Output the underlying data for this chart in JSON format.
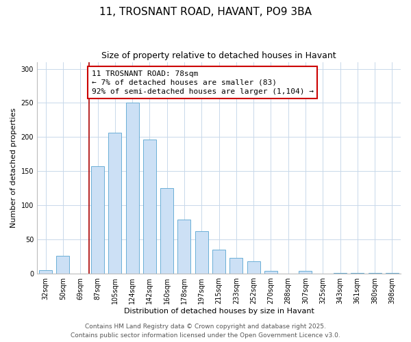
{
  "title": "11, TROSNANT ROAD, HAVANT, PO9 3BA",
  "subtitle": "Size of property relative to detached houses in Havant",
  "xlabel": "Distribution of detached houses by size in Havant",
  "ylabel": "Number of detached properties",
  "bar_labels": [
    "32sqm",
    "50sqm",
    "69sqm",
    "87sqm",
    "105sqm",
    "124sqm",
    "142sqm",
    "160sqm",
    "178sqm",
    "197sqm",
    "215sqm",
    "233sqm",
    "252sqm",
    "270sqm",
    "288sqm",
    "307sqm",
    "325sqm",
    "343sqm",
    "361sqm",
    "380sqm",
    "398sqm"
  ],
  "bar_values": [
    5,
    26,
    0,
    157,
    206,
    250,
    196,
    125,
    79,
    62,
    35,
    23,
    18,
    4,
    0,
    4,
    0,
    1,
    1,
    1,
    1
  ],
  "bar_color": "#cce0f5",
  "bar_edge_color": "#6aaed6",
  "bar_width": 0.75,
  "vline_x": 2.5,
  "vline_color": "#aa0000",
  "annotation_text": "11 TROSNANT ROAD: 78sqm\n← 7% of detached houses are smaller (83)\n92% of semi-detached houses are larger (1,104) →",
  "annotation_box_color": "#ffffff",
  "annotation_box_edge_color": "#cc0000",
  "ylim": [
    0,
    310
  ],
  "yticks": [
    0,
    50,
    100,
    150,
    200,
    250,
    300
  ],
  "footer_line1": "Contains HM Land Registry data © Crown copyright and database right 2025.",
  "footer_line2": "Contains public sector information licensed under the Open Government Licence v3.0.",
  "background_color": "#ffffff",
  "grid_color": "#c8d8ea",
  "title_fontsize": 11,
  "subtitle_fontsize": 9,
  "axis_label_fontsize": 8,
  "tick_fontsize": 7,
  "annotation_fontsize": 8,
  "footer_fontsize": 6.5
}
